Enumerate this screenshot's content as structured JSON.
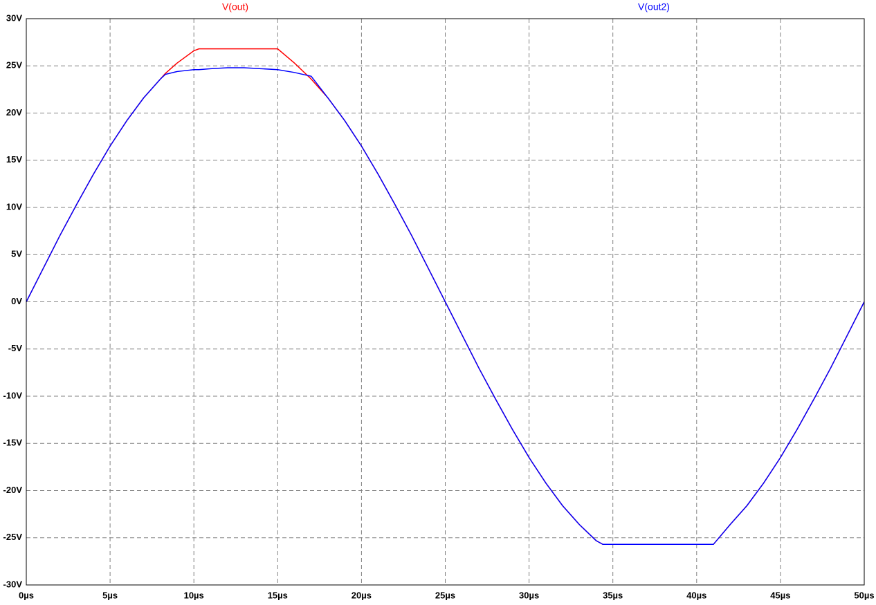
{
  "chart_data": {
    "type": "line",
    "x": [
      0,
      1,
      2,
      3,
      4,
      5,
      6,
      7,
      8,
      8.3,
      9,
      10,
      10.3,
      11,
      12,
      13,
      14,
      15,
      16,
      17,
      18,
      19,
      20,
      21,
      22,
      23,
      24,
      25,
      26,
      27,
      28,
      29,
      30,
      31,
      32,
      33,
      34,
      34.4,
      35,
      36,
      37,
      38,
      39,
      40,
      41,
      42,
      43,
      44,
      45,
      46,
      47,
      48,
      49,
      50
    ],
    "series": [
      {
        "name": "V(out)",
        "color": "#ff0000",
        "values": [
          0,
          3.5,
          7.0,
          10.3,
          13.5,
          16.5,
          19.2,
          21.6,
          23.6,
          24.2,
          25.3,
          26.6,
          26.8,
          26.8,
          26.8,
          26.8,
          26.8,
          26.8,
          25.3,
          23.6,
          21.6,
          19.2,
          16.5,
          13.5,
          10.3,
          7.0,
          3.5,
          0,
          -3.5,
          -7.0,
          -10.3,
          -13.5,
          -16.5,
          -19.2,
          -21.6,
          -23.6,
          -25.3,
          -25.7,
          -25.7,
          -25.7,
          -25.7,
          -25.7,
          -25.7,
          -25.7,
          -25.7,
          -23.6,
          -21.6,
          -19.2,
          -16.5,
          -13.5,
          -10.3,
          -7.0,
          -3.5,
          0
        ]
      },
      {
        "name": "V(out2)",
        "color": "#0000ff",
        "values": [
          0,
          3.5,
          7.0,
          10.3,
          13.5,
          16.5,
          19.2,
          21.6,
          23.6,
          24.1,
          24.4,
          24.6,
          24.6,
          24.7,
          24.8,
          24.8,
          24.7,
          24.6,
          24.3,
          23.9,
          21.6,
          19.2,
          16.5,
          13.5,
          10.3,
          7.0,
          3.5,
          0,
          -3.5,
          -7.0,
          -10.3,
          -13.5,
          -16.5,
          -19.2,
          -21.6,
          -23.6,
          -25.3,
          -25.7,
          -25.7,
          -25.7,
          -25.7,
          -25.7,
          -25.7,
          -25.7,
          -25.7,
          -23.6,
          -21.6,
          -19.2,
          -16.5,
          -13.5,
          -10.3,
          -7.0,
          -3.5,
          0
        ]
      }
    ],
    "xlim": [
      0,
      50
    ],
    "xticks": [
      {
        "value": 0,
        "label": "0µs"
      },
      {
        "value": 5,
        "label": "5µs"
      },
      {
        "value": 10,
        "label": "10µs"
      },
      {
        "value": 15,
        "label": "15µs"
      },
      {
        "value": 20,
        "label": "20µs"
      },
      {
        "value": 25,
        "label": "25µs"
      },
      {
        "value": 30,
        "label": "30µs"
      },
      {
        "value": 35,
        "label": "35µs"
      },
      {
        "value": 40,
        "label": "40µs"
      },
      {
        "value": 45,
        "label": "45µs"
      },
      {
        "value": 50,
        "label": "50µs"
      }
    ],
    "ylim": [
      -30,
      30
    ],
    "yticks": [
      {
        "value": -30,
        "label": "-30V"
      },
      {
        "value": -25,
        "label": "-25V"
      },
      {
        "value": -20,
        "label": "-20V"
      },
      {
        "value": -15,
        "label": "-15V"
      },
      {
        "value": -10,
        "label": "-10V"
      },
      {
        "value": -5,
        "label": "-5V"
      },
      {
        "value": 0,
        "label": "0V"
      },
      {
        "value": 5,
        "label": "5V"
      },
      {
        "value": 10,
        "label": "10V"
      },
      {
        "value": 15,
        "label": "15V"
      },
      {
        "value": 20,
        "label": "20V"
      },
      {
        "value": 25,
        "label": "25V"
      },
      {
        "value": 30,
        "label": "30V"
      }
    ],
    "grid": true
  }
}
